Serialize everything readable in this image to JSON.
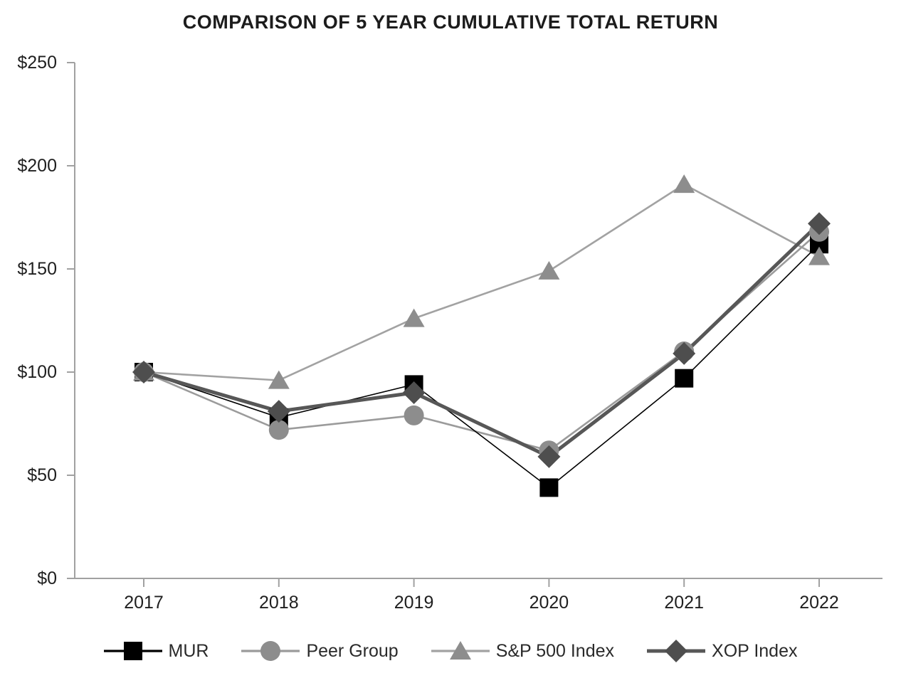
{
  "title": "COMPARISON OF 5 YEAR CUMULATIVE TOTAL RETURN",
  "chart_data": {
    "type": "line",
    "title": "COMPARISON OF 5 YEAR CUMULATIVE TOTAL RETURN",
    "x": [
      "2017",
      "2018",
      "2019",
      "2020",
      "2021",
      "2022"
    ],
    "series": [
      {
        "name": "MUR",
        "marker": "square",
        "marker_color": "#000000",
        "line_color": "#000000",
        "line_width": 1.6,
        "values": [
          100,
          78,
          94,
          44,
          97,
          162
        ]
      },
      {
        "name": "Peer Group",
        "marker": "circle",
        "marker_color": "#8d8d8d",
        "line_color": "#9b9b9b",
        "line_width": 2.6,
        "values": [
          100,
          72,
          79,
          62,
          110,
          168
        ]
      },
      {
        "name": "S&P 500 Index",
        "marker": "triangle",
        "marker_color": "#8d8d8d",
        "line_color": "#a2a2a2",
        "line_width": 2.6,
        "values": [
          100,
          96,
          126,
          149,
          191,
          156
        ]
      },
      {
        "name": "XOP Index",
        "marker": "diamond",
        "marker_color": "#4e4e4e",
        "line_color": "#575757",
        "line_width": 5.0,
        "values": [
          100,
          81,
          90,
          59,
          109,
          172
        ]
      }
    ],
    "ylim": [
      0,
      250
    ],
    "ytick_values": [
      0,
      50,
      100,
      150,
      200,
      250
    ],
    "ytick_labels": [
      "$0",
      "$50",
      "$100",
      "$150",
      "$200",
      "$250"
    ],
    "xlabel": "",
    "ylabel": "",
    "grid": false,
    "legend_position": "bottom",
    "axis_color": "#a1a1a1",
    "tick_label_color": "#1f1f1f"
  }
}
